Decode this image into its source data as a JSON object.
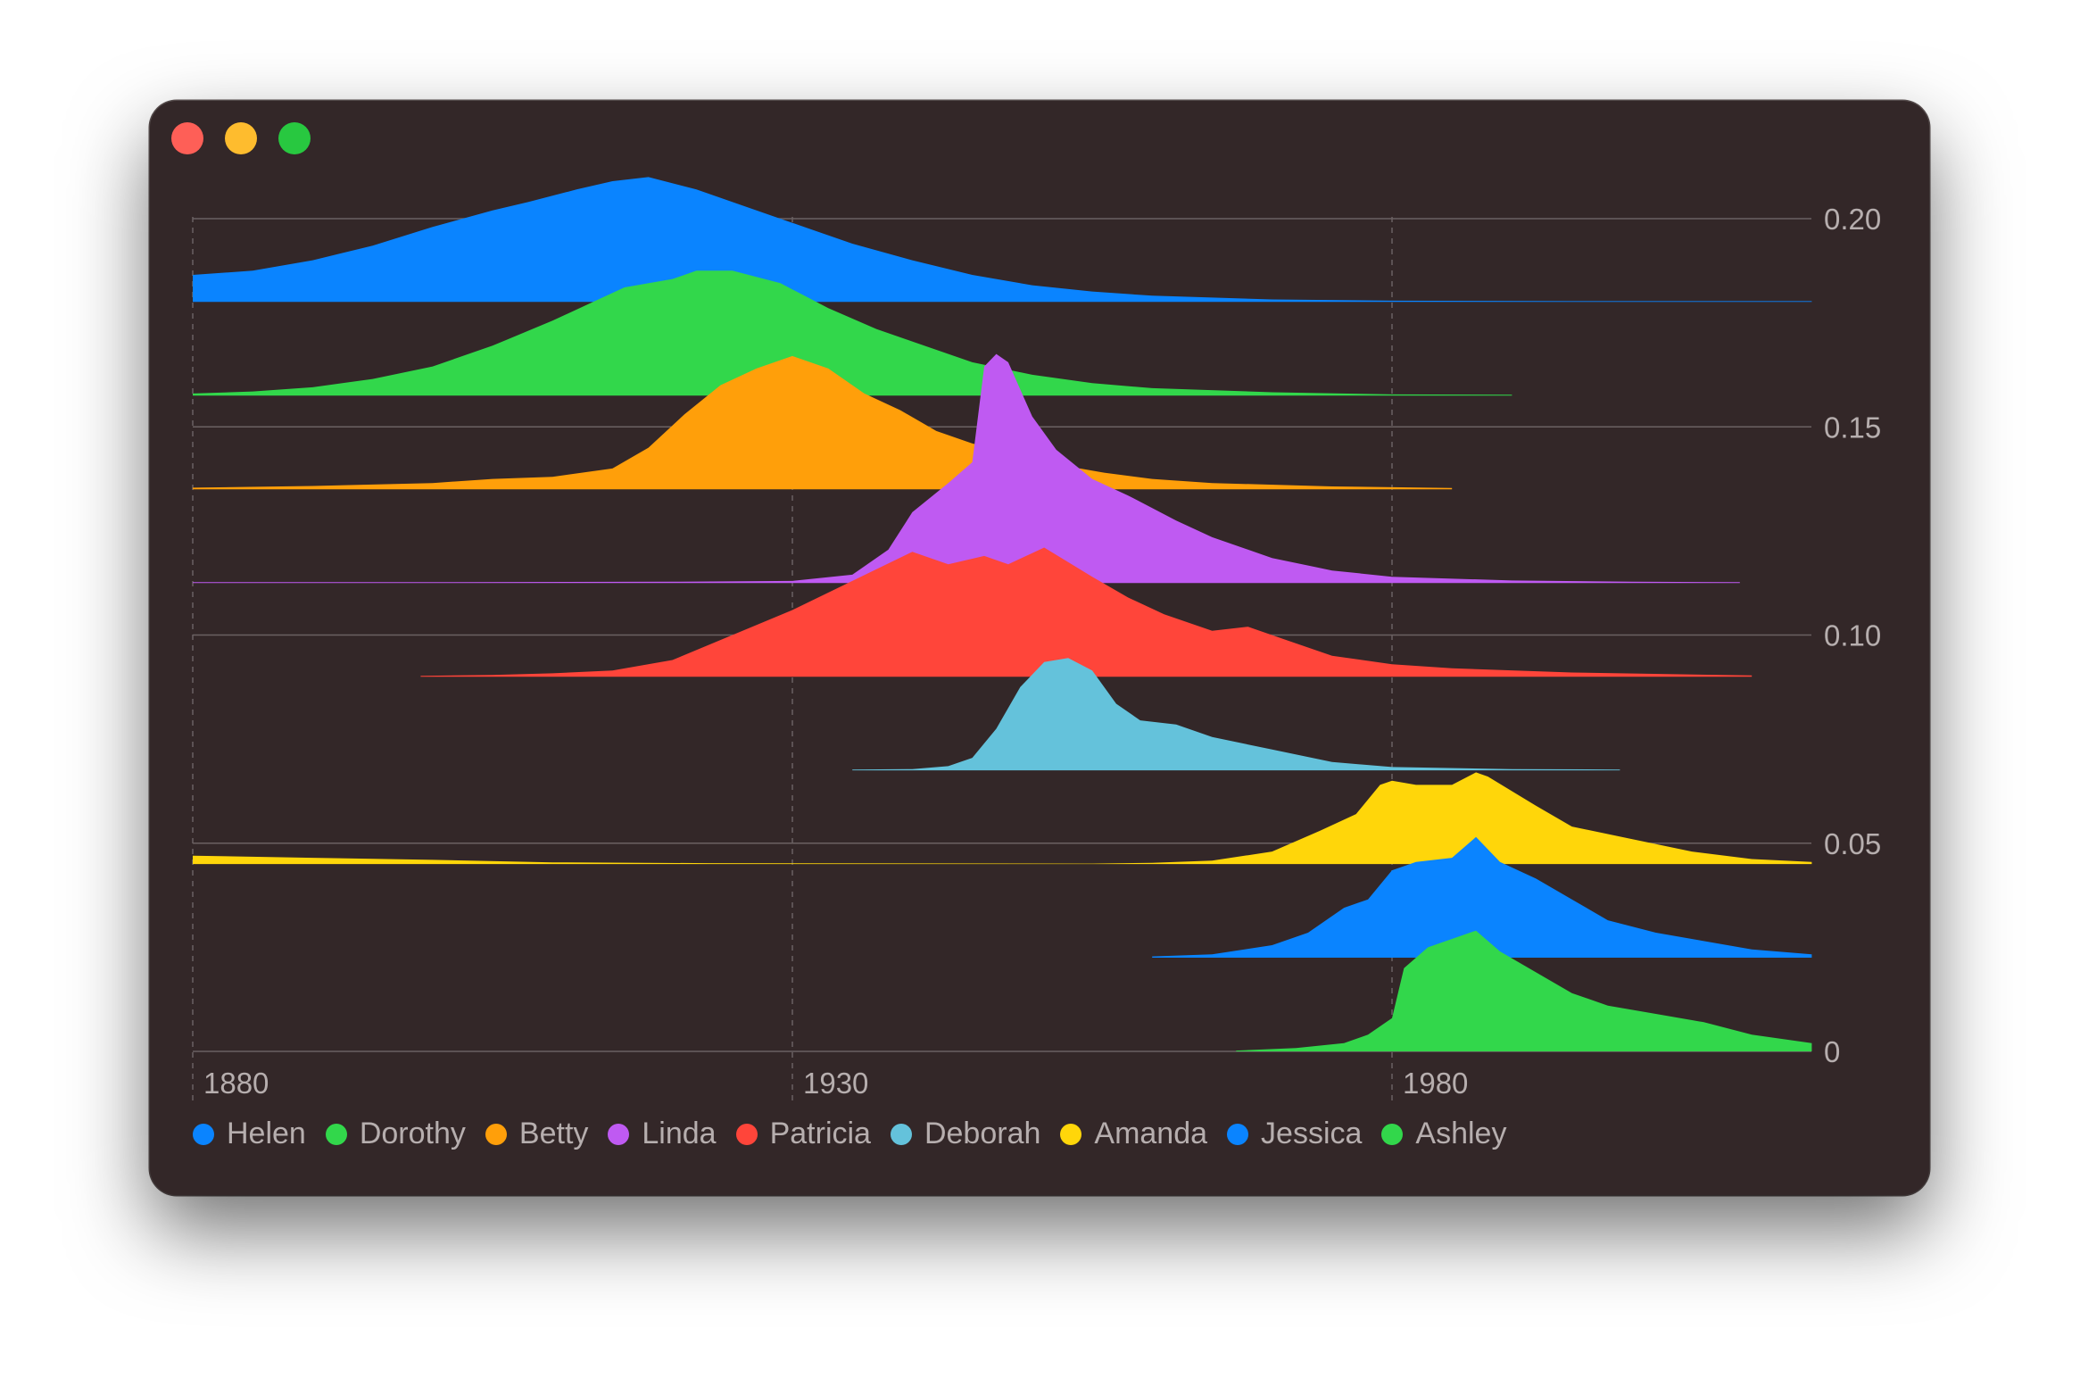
{
  "window": {
    "controls": [
      "close",
      "minimize",
      "zoom"
    ]
  },
  "chart_data": {
    "type": "area",
    "subtype": "ridgeline",
    "title": "",
    "xlabel": "",
    "ylabel": "",
    "x_ticks": [
      1880,
      1930,
      1980
    ],
    "y_ticks": [
      "0",
      "0.05",
      "0.10",
      "0.15",
      "0.20"
    ],
    "y_tick_values": [
      0,
      0.05,
      0.1,
      0.15,
      0.2
    ],
    "xlim": [
      1880,
      2015
    ],
    "ylim": [
      0,
      0.2
    ],
    "row_offset": 0.0225,
    "grid": {
      "horizontal": true,
      "vertical_dashed": true
    },
    "legend_position": "bottom-left",
    "series": [
      {
        "name": "Helen",
        "color": "#0a84ff",
        "baseline_row": 8,
        "points": [
          [
            1880,
            0.0065
          ],
          [
            1885,
            0.0075
          ],
          [
            1890,
            0.01
          ],
          [
            1895,
            0.0135
          ],
          [
            1900,
            0.018
          ],
          [
            1905,
            0.022
          ],
          [
            1908,
            0.024
          ],
          [
            1912,
            0.027
          ],
          [
            1915,
            0.029
          ],
          [
            1918,
            0.03
          ],
          [
            1922,
            0.027
          ],
          [
            1926,
            0.023
          ],
          [
            1930,
            0.019
          ],
          [
            1935,
            0.014
          ],
          [
            1940,
            0.01
          ],
          [
            1945,
            0.0065
          ],
          [
            1950,
            0.004
          ],
          [
            1955,
            0.0025
          ],
          [
            1960,
            0.0015
          ],
          [
            1970,
            0.0006
          ],
          [
            1980,
            0.0003
          ],
          [
            1995,
            0.0002
          ],
          [
            2015,
            0.0002
          ]
        ]
      },
      {
        "name": "Dorothy",
        "color": "#32d74b",
        "baseline_row": 7,
        "points": [
          [
            1880,
            0.0005
          ],
          [
            1885,
            0.001
          ],
          [
            1890,
            0.002
          ],
          [
            1895,
            0.004
          ],
          [
            1900,
            0.007
          ],
          [
            1905,
            0.012
          ],
          [
            1910,
            0.018
          ],
          [
            1913,
            0.022
          ],
          [
            1916,
            0.026
          ],
          [
            1920,
            0.028
          ],
          [
            1922,
            0.03
          ],
          [
            1925,
            0.03
          ],
          [
            1929,
            0.027
          ],
          [
            1933,
            0.021
          ],
          [
            1937,
            0.016
          ],
          [
            1940,
            0.013
          ],
          [
            1945,
            0.008
          ],
          [
            1950,
            0.005
          ],
          [
            1955,
            0.003
          ],
          [
            1960,
            0.0018
          ],
          [
            1970,
            0.0008
          ],
          [
            1980,
            0.0003
          ],
          [
            1990,
            0.0002
          ]
        ]
      },
      {
        "name": "Betty",
        "color": "#ff9f0a",
        "baseline_row": 6,
        "points": [
          [
            1880,
            0.0004
          ],
          [
            1890,
            0.0008
          ],
          [
            1900,
            0.0015
          ],
          [
            1905,
            0.0025
          ],
          [
            1910,
            0.003
          ],
          [
            1915,
            0.005
          ],
          [
            1918,
            0.01
          ],
          [
            1921,
            0.018
          ],
          [
            1924,
            0.025
          ],
          [
            1927,
            0.029
          ],
          [
            1930,
            0.032
          ],
          [
            1933,
            0.029
          ],
          [
            1936,
            0.023
          ],
          [
            1939,
            0.019
          ],
          [
            1942,
            0.014
          ],
          [
            1945,
            0.011
          ],
          [
            1948,
            0.009
          ],
          [
            1952,
            0.006
          ],
          [
            1956,
            0.004
          ],
          [
            1960,
            0.0025
          ],
          [
            1965,
            0.0015
          ],
          [
            1975,
            0.0007
          ],
          [
            1985,
            0.0003
          ]
        ]
      },
      {
        "name": "Linda",
        "color": "#bf5af2",
        "baseline_row": 5,
        "points": [
          [
            1880,
            0.0002
          ],
          [
            1900,
            0.0002
          ],
          [
            1920,
            0.0003
          ],
          [
            1930,
            0.0005
          ],
          [
            1935,
            0.002
          ],
          [
            1938,
            0.008
          ],
          [
            1940,
            0.017
          ],
          [
            1943,
            0.024
          ],
          [
            1945,
            0.029
          ],
          [
            1946,
            0.052
          ],
          [
            1947,
            0.055
          ],
          [
            1948,
            0.053
          ],
          [
            1950,
            0.04
          ],
          [
            1952,
            0.032
          ],
          [
            1955,
            0.025
          ],
          [
            1958,
            0.021
          ],
          [
            1962,
            0.015
          ],
          [
            1965,
            0.011
          ],
          [
            1970,
            0.006
          ],
          [
            1975,
            0.003
          ],
          [
            1980,
            0.0015
          ],
          [
            1990,
            0.0006
          ],
          [
            2000,
            0.0003
          ],
          [
            2009,
            0.0002
          ]
        ]
      },
      {
        "name": "Patricia",
        "color": "#ff453a",
        "baseline_row": 4,
        "points": [
          [
            1899,
            0.0002
          ],
          [
            1905,
            0.0004
          ],
          [
            1910,
            0.0008
          ],
          [
            1915,
            0.0015
          ],
          [
            1920,
            0.004
          ],
          [
            1925,
            0.01
          ],
          [
            1930,
            0.016
          ],
          [
            1935,
            0.023
          ],
          [
            1940,
            0.03
          ],
          [
            1943,
            0.027
          ],
          [
            1946,
            0.029
          ],
          [
            1948,
            0.027
          ],
          [
            1951,
            0.031
          ],
          [
            1955,
            0.024
          ],
          [
            1958,
            0.019
          ],
          [
            1961,
            0.015
          ],
          [
            1965,
            0.011
          ],
          [
            1968,
            0.012
          ],
          [
            1971,
            0.009
          ],
          [
            1975,
            0.005
          ],
          [
            1980,
            0.003
          ],
          [
            1985,
            0.002
          ],
          [
            1995,
            0.001
          ],
          [
            2010,
            0.0003
          ]
        ]
      },
      {
        "name": "Deborah",
        "color": "#64c2db",
        "baseline_row": 3,
        "points": [
          [
            1935,
            0.0002
          ],
          [
            1940,
            0.0003
          ],
          [
            1943,
            0.001
          ],
          [
            1945,
            0.003
          ],
          [
            1947,
            0.01
          ],
          [
            1949,
            0.02
          ],
          [
            1951,
            0.026
          ],
          [
            1953,
            0.027
          ],
          [
            1955,
            0.024
          ],
          [
            1957,
            0.016
          ],
          [
            1959,
            0.012
          ],
          [
            1962,
            0.011
          ],
          [
            1965,
            0.008
          ],
          [
            1970,
            0.005
          ],
          [
            1975,
            0.002
          ],
          [
            1980,
            0.0008
          ],
          [
            1990,
            0.0003
          ],
          [
            1999,
            0.0002
          ]
        ]
      },
      {
        "name": "Amanda",
        "color": "#ffd60a",
        "baseline_row": 2,
        "points": [
          [
            1880,
            0.002
          ],
          [
            1890,
            0.0015
          ],
          [
            1900,
            0.001
          ],
          [
            1910,
            0.0004
          ],
          [
            1923,
            0.0002
          ],
          [
            1955,
            0.0001
          ],
          [
            1960,
            0.0003
          ],
          [
            1965,
            0.0008
          ],
          [
            1970,
            0.003
          ],
          [
            1974,
            0.008
          ],
          [
            1977,
            0.012
          ],
          [
            1979,
            0.019
          ],
          [
            1980,
            0.02
          ],
          [
            1982,
            0.019
          ],
          [
            1985,
            0.019
          ],
          [
            1987,
            0.022
          ],
          [
            1988,
            0.021
          ],
          [
            1992,
            0.014
          ],
          [
            1995,
            0.009
          ],
          [
            2000,
            0.006
          ],
          [
            2005,
            0.003
          ],
          [
            2010,
            0.0012
          ],
          [
            2015,
            0.0005
          ]
        ]
      },
      {
        "name": "Jessica",
        "color": "#0a84ff",
        "baseline_row": 1,
        "points": [
          [
            1960,
            0.0003
          ],
          [
            1965,
            0.0008
          ],
          [
            1970,
            0.003
          ],
          [
            1973,
            0.006
          ],
          [
            1976,
            0.012
          ],
          [
            1978,
            0.014
          ],
          [
            1980,
            0.021
          ],
          [
            1982,
            0.023
          ],
          [
            1985,
            0.024
          ],
          [
            1987,
            0.029
          ],
          [
            1989,
            0.023
          ],
          [
            1992,
            0.019
          ],
          [
            1995,
            0.014
          ],
          [
            1998,
            0.009
          ],
          [
            2002,
            0.006
          ],
          [
            2006,
            0.004
          ],
          [
            2010,
            0.002
          ],
          [
            2015,
            0.0008
          ]
        ]
      },
      {
        "name": "Ashley",
        "color": "#32d74b",
        "baseline_row": 0,
        "points": [
          [
            1967,
            0.0002
          ],
          [
            1972,
            0.0008
          ],
          [
            1976,
            0.002
          ],
          [
            1978,
            0.004
          ],
          [
            1980,
            0.008
          ],
          [
            1981,
            0.02
          ],
          [
            1983,
            0.025
          ],
          [
            1985,
            0.027
          ],
          [
            1987,
            0.029
          ],
          [
            1989,
            0.024
          ],
          [
            1992,
            0.019
          ],
          [
            1995,
            0.014
          ],
          [
            1998,
            0.011
          ],
          [
            2002,
            0.009
          ],
          [
            2006,
            0.007
          ],
          [
            2010,
            0.004
          ],
          [
            2015,
            0.002
          ]
        ]
      }
    ]
  }
}
